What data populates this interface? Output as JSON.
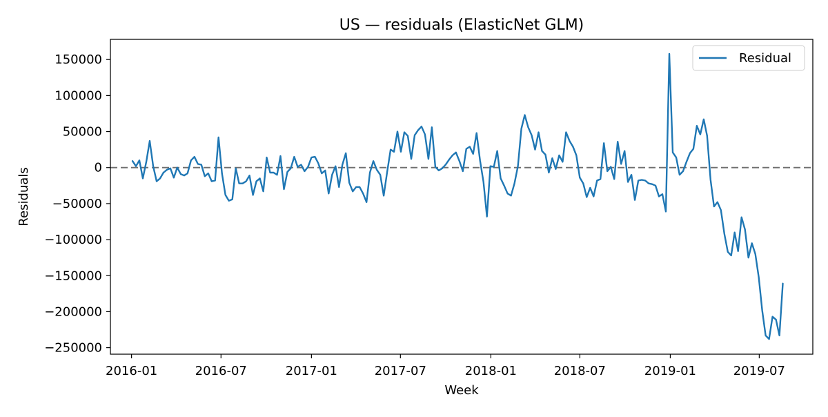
{
  "chart_data": {
    "type": "line",
    "title": "US — residuals (ElasticNet GLM)",
    "xlabel": "Week",
    "ylabel": "Residuals",
    "x_tick_labels": [
      "2016-01",
      "2016-07",
      "2017-01",
      "2017-07",
      "2018-01",
      "2018-07",
      "2019-01",
      "2019-07"
    ],
    "x_tick_dates": [
      "2016-01-01",
      "2016-07-01",
      "2017-01-01",
      "2017-07-01",
      "2018-01-01",
      "2018-07-01",
      "2019-01-01",
      "2019-07-01"
    ],
    "y_ticks": [
      150000,
      100000,
      50000,
      0,
      -50000,
      -100000,
      -150000,
      -200000,
      -250000
    ],
    "y_tick_labels": [
      "150000",
      "100000",
      "50000",
      "0",
      "−50000",
      "−100000",
      "−150000",
      "−200000",
      "−250000"
    ],
    "xlim": [
      "2015-11-19",
      "2019-10-18"
    ],
    "ylim": [
      -259000,
      178000
    ],
    "grid": false,
    "legend_position": "top-right",
    "reference_line": {
      "y": 0,
      "style": "dashed",
      "color": "#707070"
    },
    "series": [
      {
        "name": "Residual",
        "color": "#1f77b4",
        "start_date": "2016-01-03",
        "step_days": 7,
        "values": [
          9000,
          2000,
          10000,
          -15000,
          8000,
          37000,
          2000,
          -19000,
          -15000,
          -7000,
          -3000,
          -1000,
          -14000,
          0,
          -9000,
          -11000,
          -8000,
          10000,
          15000,
          5000,
          4000,
          -12000,
          -8000,
          -19000,
          -18000,
          42000,
          -8000,
          -38000,
          -46000,
          -44000,
          -1000,
          -22000,
          -22000,
          -19000,
          -11000,
          -38000,
          -19000,
          -15000,
          -33000,
          14000,
          -7000,
          -7000,
          -10000,
          16000,
          -30000,
          -6000,
          -1000,
          15000,
          1000,
          4000,
          -5000,
          1000,
          14000,
          15000,
          6000,
          -8000,
          -4000,
          -36000,
          -10000,
          2000,
          -27000,
          4000,
          20000,
          -21000,
          -33000,
          -27000,
          -27000,
          -36000,
          -48000,
          -7000,
          9000,
          -3000,
          -10000,
          -39000,
          -6000,
          25000,
          22000,
          50000,
          22000,
          49000,
          44000,
          12000,
          45000,
          52000,
          57000,
          46000,
          12000,
          56000,
          1000,
          -4000,
          -1000,
          4000,
          11000,
          17000,
          21000,
          9000,
          -5000,
          26000,
          29000,
          19000,
          48000,
          10000,
          -20000,
          -68000,
          2000,
          1000,
          23000,
          -15000,
          -25000,
          -36000,
          -39000,
          -22000,
          2000,
          54000,
          73000,
          56000,
          45000,
          25000,
          49000,
          23000,
          18000,
          -7000,
          13000,
          -2000,
          17000,
          8000,
          49000,
          37000,
          29000,
          17000,
          -14000,
          -22000,
          -41000,
          -28000,
          -40000,
          -18000,
          -16000,
          34000,
          -5000,
          1000,
          -16000,
          36000,
          5000,
          23000,
          -20000,
          -10000,
          -45000,
          -18000,
          -17000,
          -18000,
          -22000,
          -23000,
          -25000,
          -40000,
          -37000,
          -61000,
          158000,
          21000,
          14000,
          -10000,
          -5000,
          8000,
          20000,
          26000,
          58000,
          46000,
          67000,
          44000,
          -17000,
          -54000,
          -48000,
          -59000,
          -92000,
          -117000,
          -122000,
          -90000,
          -116000,
          -69000,
          -86000,
          -125000,
          -105000,
          -120000,
          -152000,
          -198000,
          -233000,
          -238000,
          -207000,
          -211000,
          -233000,
          -161000
        ]
      }
    ]
  }
}
